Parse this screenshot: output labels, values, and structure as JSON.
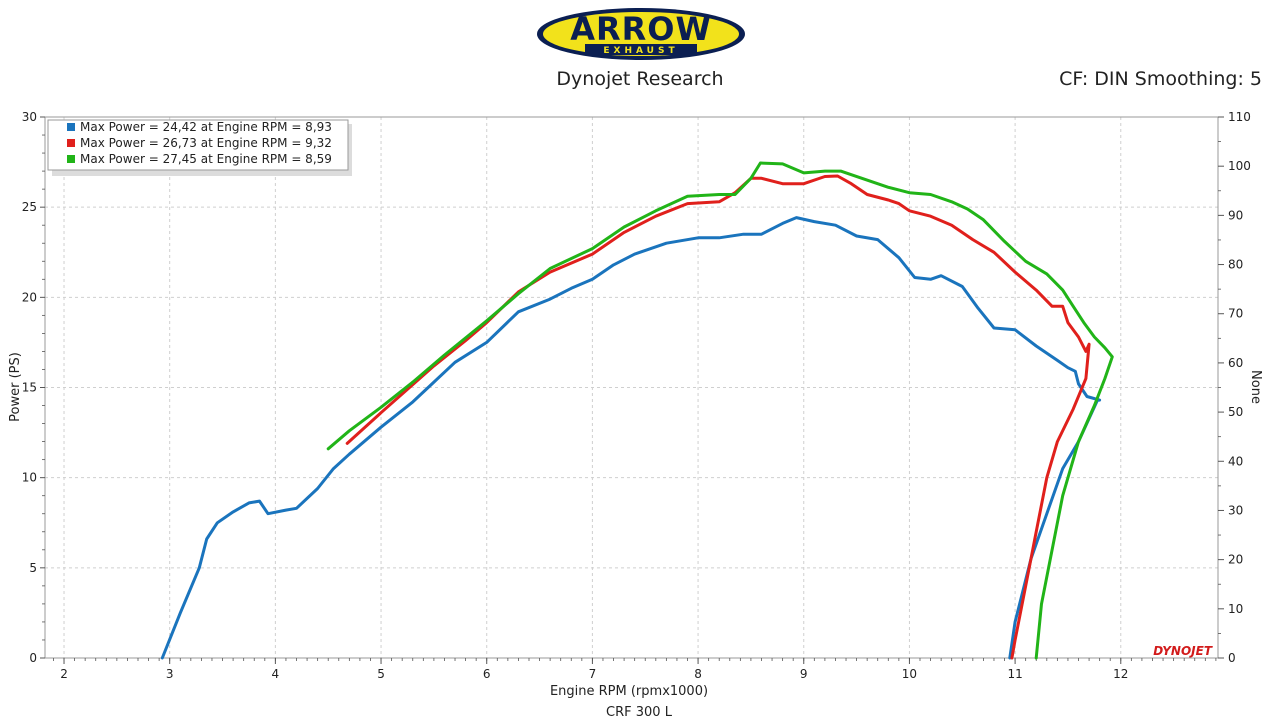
{
  "logo": {
    "brand": "ARROW",
    "sub": "EXHAUST"
  },
  "header": {
    "title": "Dynojet Research",
    "cf_label": "CF: DIN Smoothing: 5"
  },
  "footer": {
    "caption": "CRF 300 L"
  },
  "watermark": "DYNOJET",
  "colors": {
    "blue": "#1a74bd",
    "red": "#e0201c",
    "green": "#21b418",
    "grid": "#cfcfcf",
    "axis": "#555555"
  },
  "chart_data": {
    "type": "line",
    "xlabel": "Engine RPM (rpmx1000)",
    "ylabel": "Power (PS)",
    "y2label": "None",
    "xlim": [
      1.82,
      12.92
    ],
    "ylim": [
      0,
      30
    ],
    "y2lim": [
      0,
      110
    ],
    "x_ticks": [
      "2",
      "3",
      "4",
      "5",
      "6",
      "7",
      "8",
      "9",
      "10",
      "11",
      "12"
    ],
    "y_ticks": [
      "0",
      "5",
      "10",
      "15",
      "20",
      "25",
      "30"
    ],
    "y2_ticks": [
      "0",
      "10",
      "20",
      "30",
      "40",
      "50",
      "60",
      "70",
      "80",
      "90",
      "100",
      "110"
    ],
    "grid": true,
    "legend_position": "top-left",
    "series": [
      {
        "legend": "Max Power = 24,42 at Engine RPM = 8,93",
        "color": "#1a74bd",
        "points": [
          [
            2.93,
            0
          ],
          [
            3.1,
            2.5
          ],
          [
            3.28,
            5.0
          ],
          [
            3.35,
            6.6
          ],
          [
            3.45,
            7.5
          ],
          [
            3.6,
            8.1
          ],
          [
            3.75,
            8.6
          ],
          [
            3.85,
            8.7
          ],
          [
            3.93,
            8.0
          ],
          [
            4.1,
            8.2
          ],
          [
            4.2,
            8.3
          ],
          [
            4.4,
            9.4
          ],
          [
            4.55,
            10.5
          ],
          [
            4.7,
            11.3
          ],
          [
            5.0,
            12.8
          ],
          [
            5.3,
            14.2
          ],
          [
            5.5,
            15.3
          ],
          [
            5.7,
            16.4
          ],
          [
            6.0,
            17.5
          ],
          [
            6.3,
            19.2
          ],
          [
            6.6,
            19.9
          ],
          [
            6.8,
            20.5
          ],
          [
            7.0,
            21.0
          ],
          [
            7.2,
            21.8
          ],
          [
            7.4,
            22.4
          ],
          [
            7.7,
            23.0
          ],
          [
            8.0,
            23.3
          ],
          [
            8.2,
            23.3
          ],
          [
            8.43,
            23.5
          ],
          [
            8.6,
            23.5
          ],
          [
            8.8,
            24.1
          ],
          [
            8.93,
            24.42
          ],
          [
            9.1,
            24.2
          ],
          [
            9.3,
            24.0
          ],
          [
            9.5,
            23.4
          ],
          [
            9.7,
            23.2
          ],
          [
            9.9,
            22.2
          ],
          [
            10.05,
            21.1
          ],
          [
            10.2,
            21.0
          ],
          [
            10.3,
            21.2
          ],
          [
            10.5,
            20.6
          ],
          [
            10.65,
            19.4
          ],
          [
            10.8,
            18.3
          ],
          [
            11.0,
            18.2
          ],
          [
            11.2,
            17.3
          ],
          [
            11.4,
            16.5
          ],
          [
            11.5,
            16.1
          ],
          [
            11.57,
            15.9
          ],
          [
            11.6,
            15.2
          ],
          [
            11.68,
            14.5
          ],
          [
            11.8,
            14.3
          ],
          [
            11.78,
            14.3
          ],
          [
            11.6,
            12.0
          ],
          [
            11.45,
            10.5
          ],
          [
            11.3,
            8.0
          ],
          [
            11.15,
            5.5
          ],
          [
            11.0,
            2.0
          ],
          [
            10.95,
            0
          ]
        ]
      },
      {
        "legend": "Max Power = 26,73 at Engine RPM = 9,32",
        "color": "#e0201c",
        "points": [
          [
            4.68,
            11.9
          ],
          [
            5.0,
            13.6
          ],
          [
            5.5,
            16.2
          ],
          [
            5.8,
            17.6
          ],
          [
            6.0,
            18.6
          ],
          [
            6.3,
            20.3
          ],
          [
            6.6,
            21.4
          ],
          [
            7.0,
            22.4
          ],
          [
            7.3,
            23.6
          ],
          [
            7.6,
            24.5
          ],
          [
            7.9,
            25.2
          ],
          [
            8.2,
            25.3
          ],
          [
            8.35,
            25.8
          ],
          [
            8.5,
            26.6
          ],
          [
            8.6,
            26.6
          ],
          [
            8.8,
            26.3
          ],
          [
            9.0,
            26.3
          ],
          [
            9.2,
            26.7
          ],
          [
            9.32,
            26.73
          ],
          [
            9.45,
            26.3
          ],
          [
            9.6,
            25.7
          ],
          [
            9.8,
            25.4
          ],
          [
            9.9,
            25.2
          ],
          [
            10.0,
            24.8
          ],
          [
            10.2,
            24.5
          ],
          [
            10.4,
            24.0
          ],
          [
            10.6,
            23.2
          ],
          [
            10.8,
            22.5
          ],
          [
            11.0,
            21.4
          ],
          [
            11.2,
            20.4
          ],
          [
            11.35,
            19.5
          ],
          [
            11.45,
            19.5
          ],
          [
            11.5,
            18.6
          ],
          [
            11.6,
            17.8
          ],
          [
            11.67,
            17.0
          ],
          [
            11.7,
            17.4
          ],
          [
            11.67,
            15.5
          ],
          [
            11.55,
            13.8
          ],
          [
            11.4,
            12.0
          ],
          [
            11.3,
            10.0
          ],
          [
            11.2,
            7.0
          ],
          [
            11.1,
            4.0
          ],
          [
            11.0,
            1.0
          ],
          [
            10.97,
            0
          ]
        ]
      },
      {
        "legend": "Max Power = 27,45 at Engine RPM = 8,59",
        "color": "#21b418",
        "points": [
          [
            4.5,
            11.6
          ],
          [
            4.7,
            12.6
          ],
          [
            5.0,
            13.9
          ],
          [
            5.3,
            15.3
          ],
          [
            5.6,
            16.8
          ],
          [
            6.0,
            18.7
          ],
          [
            6.3,
            20.2
          ],
          [
            6.6,
            21.6
          ],
          [
            7.0,
            22.7
          ],
          [
            7.3,
            23.9
          ],
          [
            7.6,
            24.8
          ],
          [
            7.9,
            25.6
          ],
          [
            8.2,
            25.7
          ],
          [
            8.35,
            25.7
          ],
          [
            8.5,
            26.6
          ],
          [
            8.59,
            27.45
          ],
          [
            8.8,
            27.4
          ],
          [
            9.0,
            26.9
          ],
          [
            9.2,
            27.0
          ],
          [
            9.35,
            27.0
          ],
          [
            9.55,
            26.6
          ],
          [
            9.8,
            26.1
          ],
          [
            10.0,
            25.8
          ],
          [
            10.2,
            25.7
          ],
          [
            10.4,
            25.3
          ],
          [
            10.55,
            24.9
          ],
          [
            10.7,
            24.3
          ],
          [
            10.9,
            23.1
          ],
          [
            11.1,
            22.0
          ],
          [
            11.3,
            21.3
          ],
          [
            11.45,
            20.4
          ],
          [
            11.55,
            19.5
          ],
          [
            11.65,
            18.6
          ],
          [
            11.75,
            17.8
          ],
          [
            11.85,
            17.2
          ],
          [
            11.92,
            16.7
          ],
          [
            11.85,
            15.5
          ],
          [
            11.75,
            14.0
          ],
          [
            11.6,
            12.0
          ],
          [
            11.45,
            9.0
          ],
          [
            11.35,
            6.0
          ],
          [
            11.25,
            3.0
          ],
          [
            11.2,
            0
          ]
        ]
      }
    ]
  }
}
